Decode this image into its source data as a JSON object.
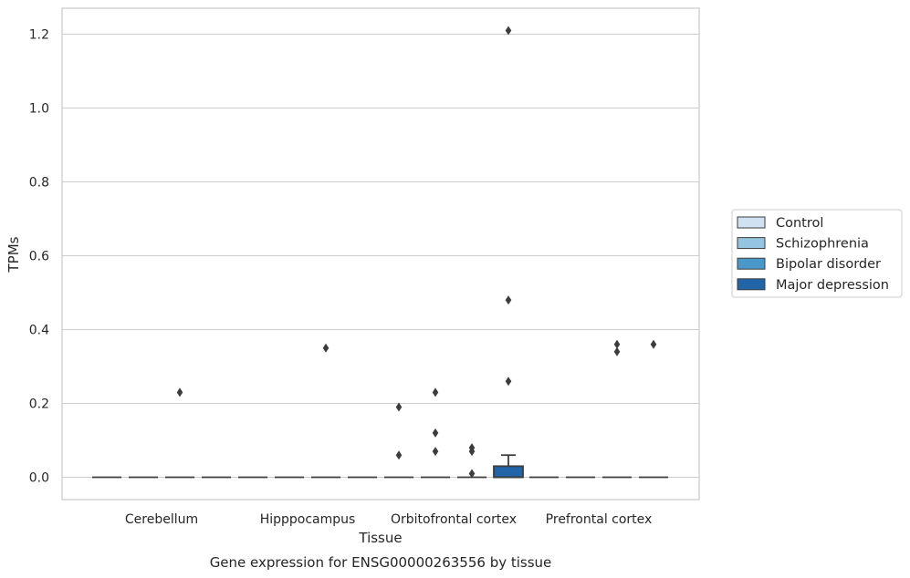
{
  "chart_data": {
    "type": "box",
    "xlabel": "Tissue",
    "ylabel": "TPMs",
    "caption": "Gene expression for ENSG00000263556 by tissue",
    "categories": [
      "Cerebellum",
      "Hipppocampus",
      "Orbitofrontal cortex",
      "Prefrontal cortex"
    ],
    "ylim": [
      -0.06,
      1.27
    ],
    "yticks": [
      0.0,
      0.2,
      0.4,
      0.6,
      0.8,
      1.0,
      1.2
    ],
    "ytick_labels": [
      "0.0",
      "0.2",
      "0.4",
      "0.6",
      "0.8",
      "1.0",
      "1.2"
    ],
    "grid": true,
    "legend": {
      "placement": "right",
      "entries": [
        {
          "name": "Control",
          "color": "#d0e1f2"
        },
        {
          "name": "Schizophrenia",
          "color": "#94c4df"
        },
        {
          "name": "Bipolar disorder",
          "color": "#4a98c9"
        },
        {
          "name": "Major depression",
          "color": "#2264a8"
        }
      ]
    },
    "series": [
      {
        "name": "Control",
        "color": "#d0e1f2",
        "boxes": [
          {
            "category": "Cerebellum",
            "q1": 0,
            "median": 0,
            "q3": 0,
            "whisker_low": 0,
            "whisker_high": 0,
            "outliers": []
          },
          {
            "category": "Hipppocampus",
            "q1": 0,
            "median": 0,
            "q3": 0,
            "whisker_low": 0,
            "whisker_high": 0,
            "outliers": []
          },
          {
            "category": "Orbitofrontal cortex",
            "q1": 0,
            "median": 0,
            "q3": 0,
            "whisker_low": 0,
            "whisker_high": 0,
            "outliers": [
              0.06,
              0.19
            ]
          },
          {
            "category": "Prefrontal cortex",
            "q1": 0,
            "median": 0,
            "q3": 0,
            "whisker_low": 0,
            "whisker_high": 0,
            "outliers": []
          }
        ]
      },
      {
        "name": "Schizophrenia",
        "color": "#94c4df",
        "boxes": [
          {
            "category": "Cerebellum",
            "q1": 0,
            "median": 0,
            "q3": 0,
            "whisker_low": 0,
            "whisker_high": 0,
            "outliers": []
          },
          {
            "category": "Hipppocampus",
            "q1": 0,
            "median": 0,
            "q3": 0,
            "whisker_low": 0,
            "whisker_high": 0,
            "outliers": []
          },
          {
            "category": "Orbitofrontal cortex",
            "q1": 0,
            "median": 0,
            "q3": 0,
            "whisker_low": 0,
            "whisker_high": 0,
            "outliers": [
              0.07,
              0.12,
              0.23
            ]
          },
          {
            "category": "Prefrontal cortex",
            "q1": 0,
            "median": 0,
            "q3": 0,
            "whisker_low": 0,
            "whisker_high": 0,
            "outliers": []
          }
        ]
      },
      {
        "name": "Bipolar disorder",
        "color": "#4a98c9",
        "boxes": [
          {
            "category": "Cerebellum",
            "q1": 0,
            "median": 0,
            "q3": 0,
            "whisker_low": 0,
            "whisker_high": 0,
            "outliers": [
              0.23
            ]
          },
          {
            "category": "Hipppocampus",
            "q1": 0,
            "median": 0,
            "q3": 0,
            "whisker_low": 0,
            "whisker_high": 0,
            "outliers": [
              0.35
            ]
          },
          {
            "category": "Orbitofrontal cortex",
            "q1": 0,
            "median": 0,
            "q3": 0,
            "whisker_low": 0,
            "whisker_high": 0,
            "outliers": [
              0.01,
              0.07,
              0.08
            ]
          },
          {
            "category": "Prefrontal cortex",
            "q1": 0,
            "median": 0,
            "q3": 0,
            "whisker_low": 0,
            "whisker_high": 0,
            "outliers": [
              0.34,
              0.36
            ]
          }
        ]
      },
      {
        "name": "Major depression",
        "color": "#2264a8",
        "boxes": [
          {
            "category": "Cerebellum",
            "q1": 0,
            "median": 0,
            "q3": 0,
            "whisker_low": 0,
            "whisker_high": 0,
            "outliers": []
          },
          {
            "category": "Hipppocampus",
            "q1": 0,
            "median": 0,
            "q3": 0,
            "whisker_low": 0,
            "whisker_high": 0,
            "outliers": []
          },
          {
            "category": "Orbitofrontal cortex",
            "q1": 0,
            "median": 0,
            "q3": 0.03,
            "whisker_low": 0,
            "whisker_high": 0.06,
            "outliers": [
              0.26,
              0.48,
              1.21
            ]
          },
          {
            "category": "Prefrontal cortex",
            "q1": 0,
            "median": 0,
            "q3": 0,
            "whisker_low": 0,
            "whisker_high": 0,
            "outliers": [
              0.36
            ]
          }
        ]
      }
    ]
  }
}
